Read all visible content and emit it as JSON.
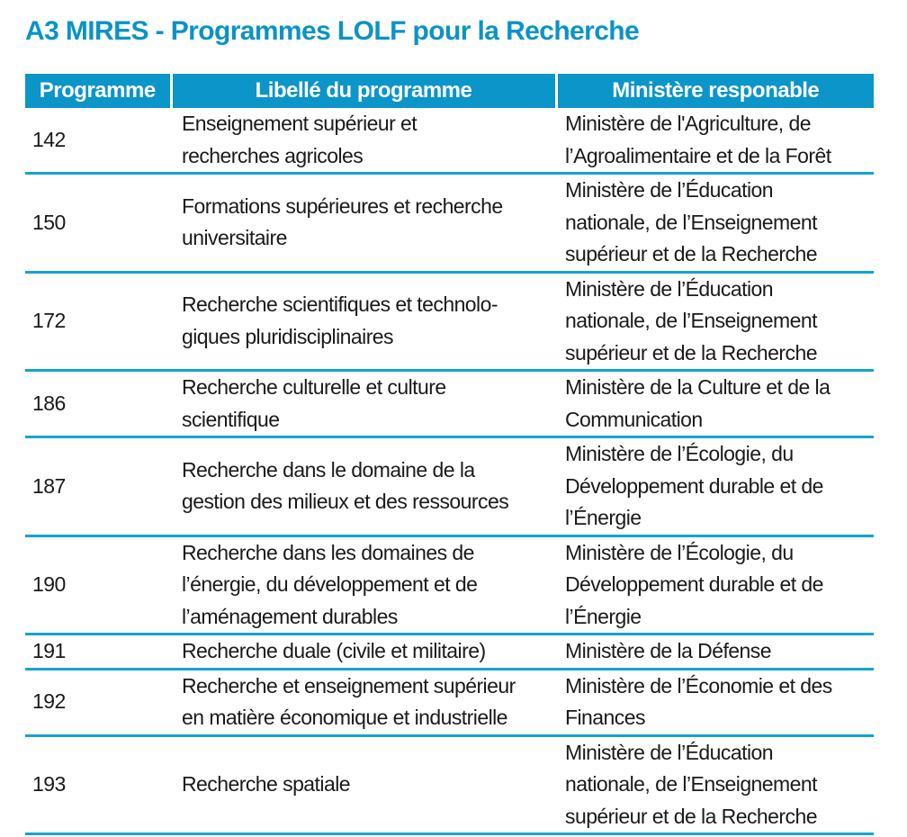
{
  "title": "A3 MIRES - Programmes LOLF pour la Recherche",
  "table": {
    "headers": [
      "Programme",
      "Libellé du programme",
      "Ministère responable"
    ],
    "rows": [
      {
        "programme": "142",
        "libelle": "Enseignement supérieur et\nrecherches agricoles",
        "ministere": "Ministère de l'Agriculture, de\nl’Agroalimentaire et de la Forêt"
      },
      {
        "programme": "150",
        "libelle": "Formations supérieures et recherche\nuniversitaire\n ",
        "ministere": "Ministère de l’Éducation\nnationale, de l’Enseignement\nsupérieur et de la Recherche"
      },
      {
        "programme": "172",
        "libelle": "Recherche scientifiques et technolo-\ngiques pluridisciplinaires",
        "ministere": "Ministère de l’Éducation\nnationale, de l’Enseignement\nsupérieur et de la Recherche"
      },
      {
        "programme": "186",
        "libelle": "Recherche culturelle et culture\nscientifique",
        "ministere": "Ministère de la Culture et de la\nCommunication"
      },
      {
        "programme": "187",
        "libelle": "Recherche dans le domaine de la\ngestion des milieux et des ressources",
        "ministere": "Ministère de l’Écologie, du\nDéveloppement durable et de\nl’Énergie"
      },
      {
        "programme": "190",
        "libelle": "Recherche dans les domaines de\nl’énergie, du développement et de\nl’aménagement durables",
        "ministere": "Ministère de l’Écologie, du\nDéveloppement durable et de\nl’Énergie"
      },
      {
        "programme": "191",
        "libelle": "Recherche duale (civile et militaire)",
        "ministere": "Ministère de la Défense"
      },
      {
        "programme": "192",
        "libelle": "Recherche et enseignement supérieur\nen matière économique et industrielle",
        "ministere": "Ministère de l’Économie et des\nFinances"
      },
      {
        "programme": "193",
        "libelle": "Recherche spatiale",
        "ministere": "Ministère de l’Éducation\nnationale, de l’Enseignement\nsupérieur et de la Recherche"
      }
    ]
  }
}
